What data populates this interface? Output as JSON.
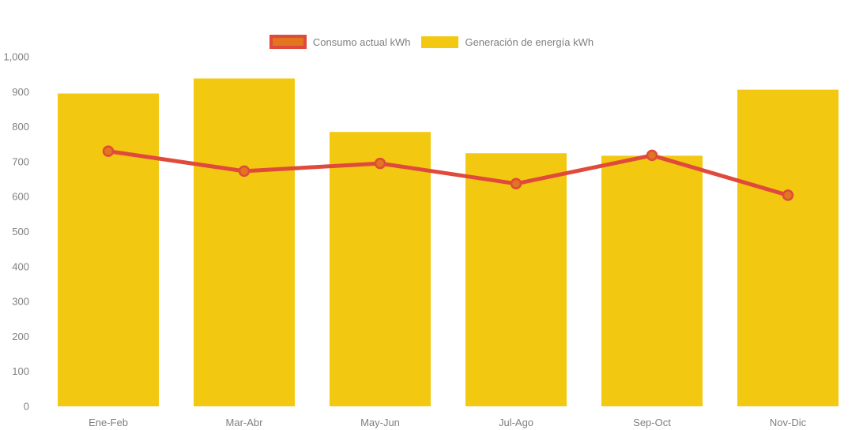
{
  "chart_data": {
    "type": "combo-bar-line",
    "categories": [
      "Ene-Feb",
      "Mar-Abr",
      "May-Jun",
      "Jul-Ago",
      "Sep-Oct",
      "Nov-Dic"
    ],
    "series": [
      {
        "name": "Consumo actual kWh",
        "type": "line",
        "color": "#E04A3C",
        "marker_color": "#E2751F",
        "values": [
          730,
          673,
          695,
          637,
          718,
          604
        ]
      },
      {
        "name": "Generación de energía kWh",
        "type": "bar",
        "color": "#F2C811",
        "values": [
          895,
          938,
          785,
          724,
          717,
          906
        ]
      }
    ],
    "title": "",
    "xlabel": "",
    "ylabel": "",
    "ylim": [
      0,
      1000
    ],
    "ytick_step": 100,
    "ytick_labels": [
      "0",
      "100",
      "200",
      "300",
      "400",
      "500",
      "600",
      "700",
      "800",
      "900",
      "1,000"
    ],
    "grid": false,
    "legend_position": "top-center",
    "axis_text_color": "#7F7F7F",
    "background_color": "#FFFFFF"
  }
}
